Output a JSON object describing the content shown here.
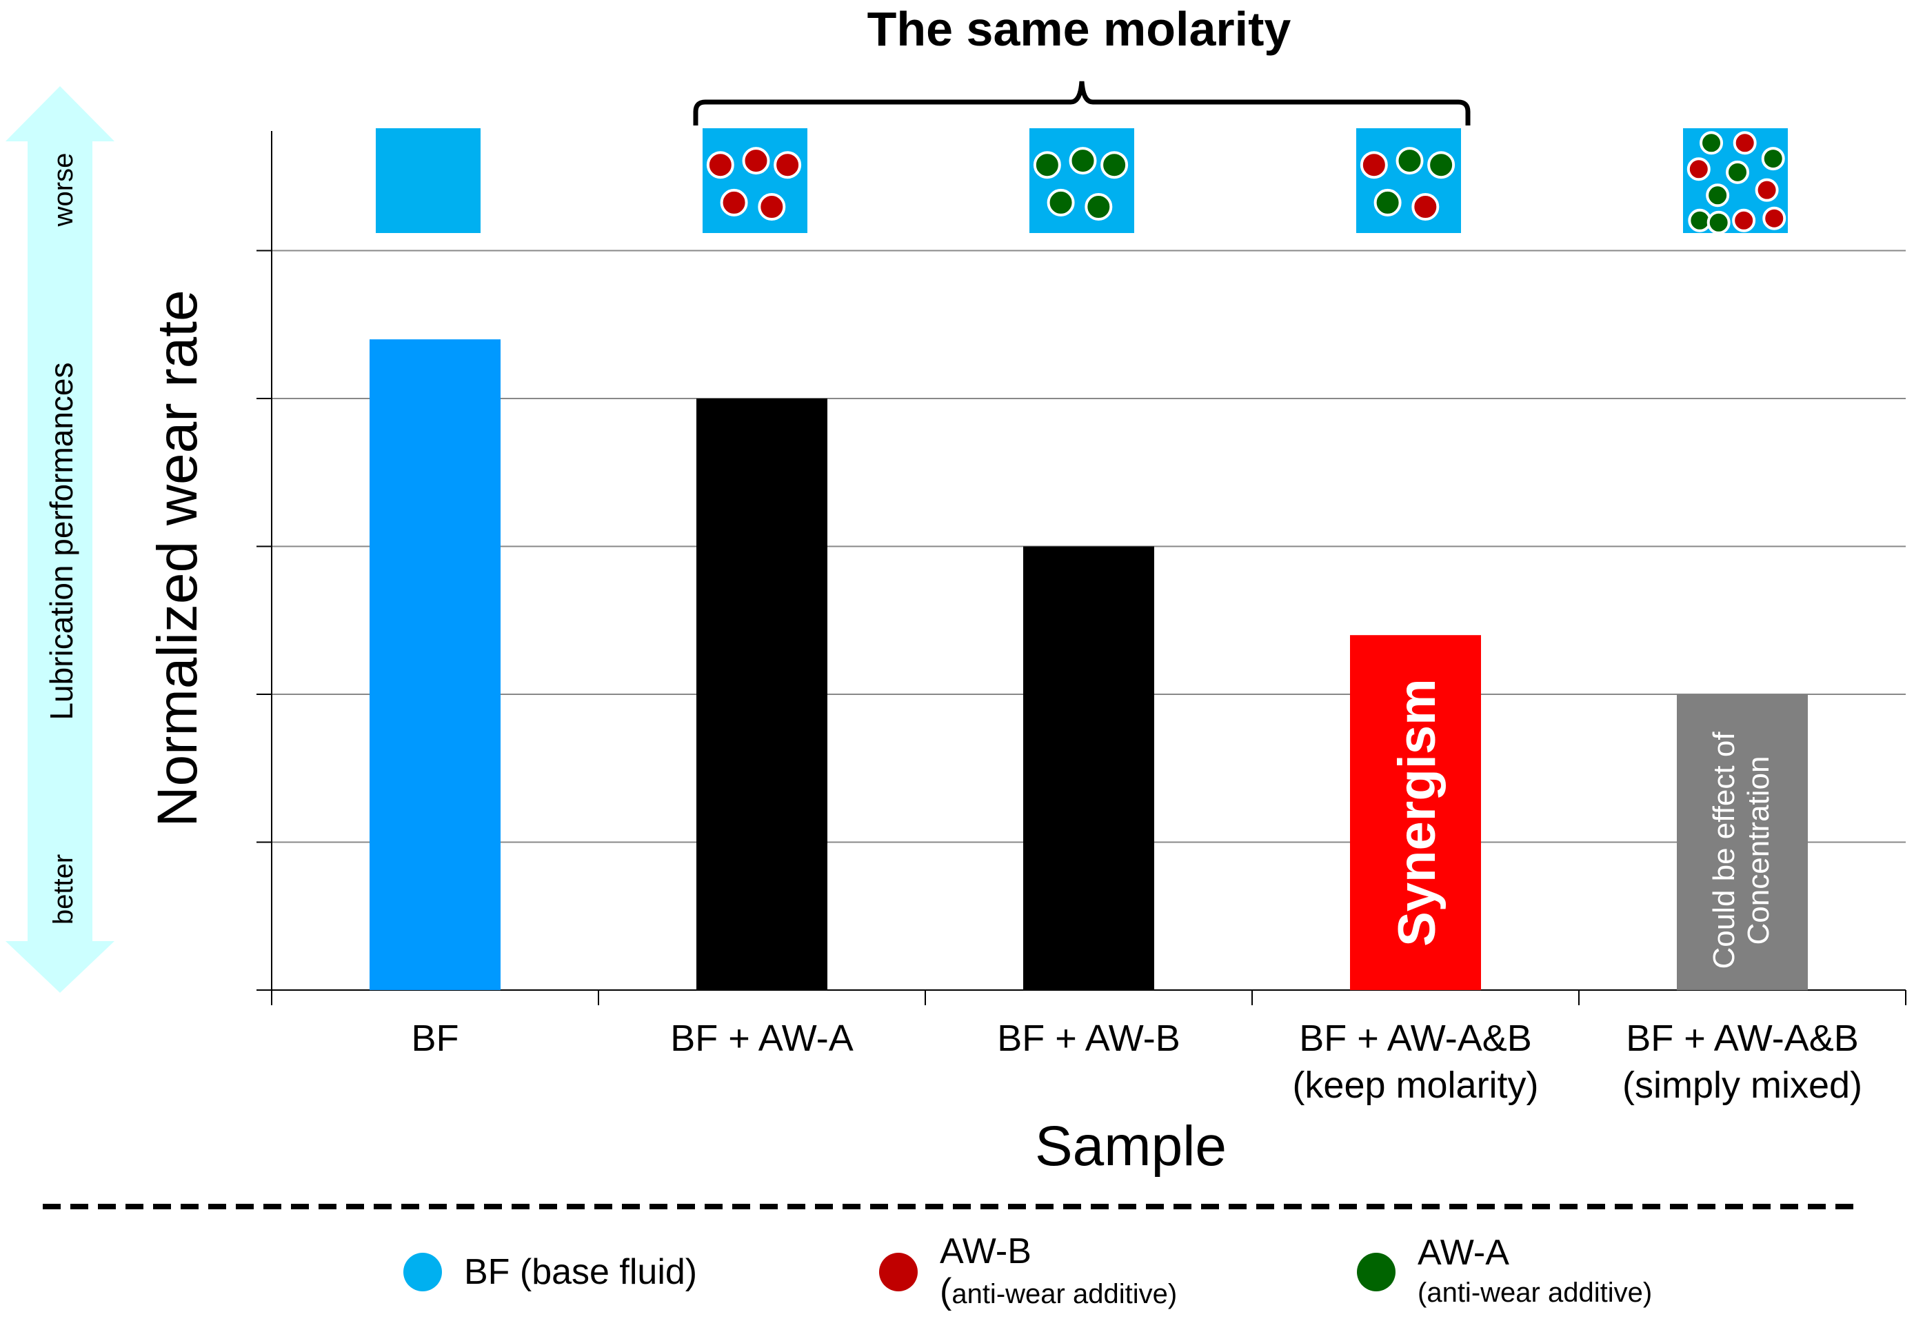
{
  "chart_data": {
    "type": "bar",
    "title": "The same molarity",
    "xlabel": "Sample",
    "ylabel": "Normalized wear rate",
    "ylim": [
      0,
      5
    ],
    "grid": true,
    "categories": [
      [
        "BF"
      ],
      [
        "BF + AW-A"
      ],
      [
        "BF + AW-B"
      ],
      [
        "BF + AW-A&B",
        "(keep molarity)"
      ],
      [
        "BF + AW-A&B",
        "(simply mixed)"
      ]
    ],
    "values": [
      4.4,
      4.0,
      3.0,
      2.4,
      2.0
    ],
    "bar_colors": [
      "#0099FF",
      "#000000",
      "#000000",
      "#FF0000",
      "#808080"
    ],
    "bar_labels": [
      "",
      "",
      "",
      "Synergism",
      "Could be effect of|Concentration"
    ],
    "performance_axis": {
      "label": "Lubrication performances",
      "top": "worse",
      "bottom": "better"
    },
    "sample_icons": [
      {
        "dots": []
      },
      {
        "dots": [
          "red",
          "red",
          "red",
          "red",
          "red"
        ]
      },
      {
        "dots": [
          "green",
          "green",
          "green",
          "green",
          "green"
        ]
      },
      {
        "dots": [
          "red",
          "green",
          "green",
          "green",
          "red"
        ]
      },
      {
        "dots": [
          "green",
          "red",
          "green",
          "red",
          "green",
          "red",
          "green",
          "red",
          "green",
          "red",
          "green"
        ]
      }
    ],
    "bracket_span": [
      "BF + AW-A",
      "BF + AW-A&B (keep molarity)"
    ]
  },
  "legend": {
    "items": [
      {
        "label": "BF (base fluid)",
        "sublabel": "",
        "color": "#00B0F0"
      },
      {
        "label": "AW-B",
        "sublabel": "anti-wear additive",
        "color": "#C00000"
      },
      {
        "label": "AW-A",
        "sublabel": "anti-wear additive",
        "color": "#006400"
      }
    ]
  },
  "colors": {
    "fluid": "#00B0F0",
    "red_additive": "#C00000",
    "green_additive": "#006400",
    "arrow": "#CCFFFF",
    "grid": "#888888"
  }
}
